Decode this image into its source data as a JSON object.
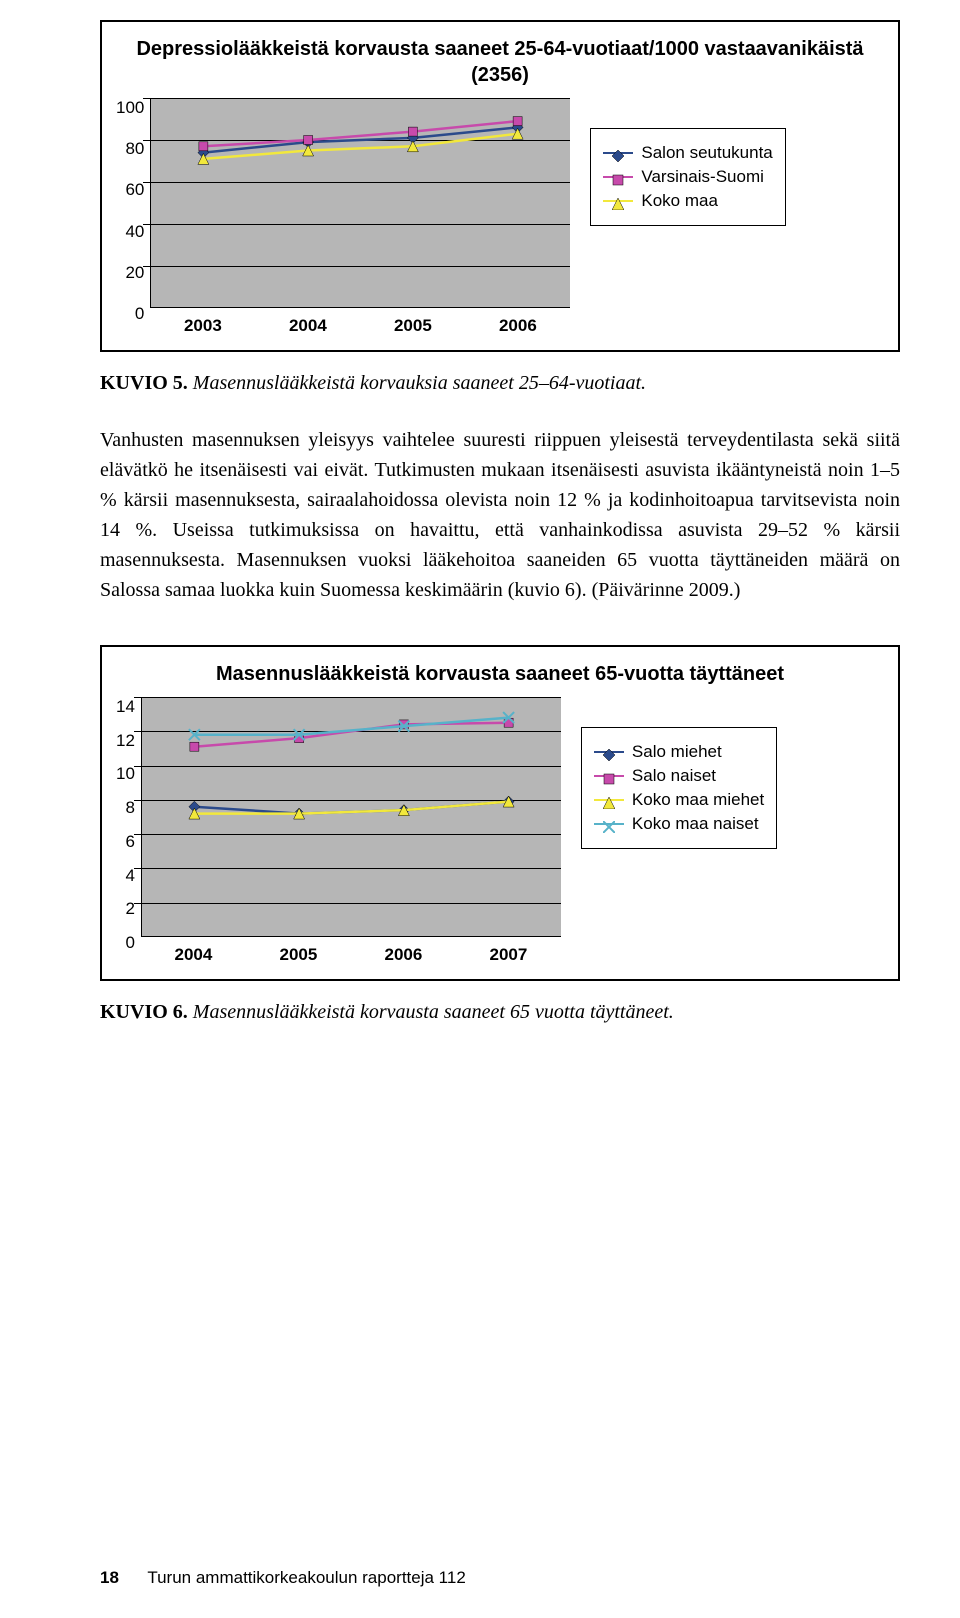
{
  "chart1": {
    "title": "Depressiolääkkeistä korvausta saaneet 25-64-vuotiaat/1000 vastaavanikäistä (2356)",
    "ylim": [
      0,
      100
    ],
    "yticks": [
      100,
      80,
      60,
      40,
      20,
      0
    ],
    "categories": [
      "2003",
      "2004",
      "2005",
      "2006"
    ],
    "plot_bg": "#b6b6b6",
    "grid_color": "#000000",
    "series": [
      {
        "name": "Salon seutukunta",
        "marker": "diamond",
        "color": "#2b4a8b",
        "values": [
          74,
          79,
          81,
          86
        ]
      },
      {
        "name": "Varsinais-Suomi",
        "marker": "square",
        "color": "#c74aab",
        "values": [
          77,
          80,
          84,
          89
        ]
      },
      {
        "name": "Koko maa",
        "marker": "triangle",
        "color": "#f2e83c",
        "values": [
          71,
          75,
          77,
          83
        ]
      }
    ]
  },
  "caption1": {
    "label": "KUVIO 5.",
    "text": "Masennuslääkkeistä korvauksia saaneet 25–64-vuotiaat."
  },
  "body": "Vanhusten masennuksen yleisyys vaihtelee suuresti riippuen yleisestä terveydentilasta sekä siitä elävätkö he itsenäisesti vai eivät. Tutkimusten mukaan itsenäisesti asuvista ikääntyneistä noin 1–5 % kärsii masennuksesta, sairaalahoidossa olevista noin 12 % ja kodinhoitoapua tarvitsevista noin 14 %. Useissa tutkimuksissa on havaittu, että vanhainkodissa asuvista 29–52 % kärsii masennuksesta. Masennuksen vuoksi lääkehoitoa saaneiden 65 vuotta täyttäneiden määrä on Salossa samaa luokka kuin Suomessa keskimäärin (kuvio 6). (Päivärinne 2009.)",
  "chart2": {
    "title": "Masennuslääkkeistä korvausta saaneet 65-vuotta täyttäneet",
    "ylim": [
      0,
      14
    ],
    "yticks": [
      14,
      12,
      10,
      8,
      6,
      4,
      2,
      0
    ],
    "categories": [
      "2004",
      "2005",
      "2006",
      "2007"
    ],
    "plot_bg": "#b6b6b6",
    "grid_color": "#000000",
    "series": [
      {
        "name": "Salo miehet",
        "marker": "diamond",
        "color": "#2b4a8b",
        "values": [
          7.6,
          7.2,
          7.4,
          7.9
        ]
      },
      {
        "name": "Salo naiset",
        "marker": "square",
        "color": "#c74aab",
        "values": [
          11.1,
          11.6,
          12.4,
          12.5
        ]
      },
      {
        "name": "Koko maa miehet",
        "marker": "triangle",
        "color": "#f2e83c",
        "values": [
          7.2,
          7.2,
          7.4,
          7.9
        ]
      },
      {
        "name": "Koko maa naiset",
        "marker": "x",
        "color": "#57b2c9",
        "values": [
          11.8,
          11.8,
          12.3,
          12.8
        ]
      }
    ]
  },
  "caption2": {
    "label": "KUVIO 6.",
    "text": "Masennuslääkkeistä korvausta saaneet 65 vuotta täyttäneet."
  },
  "footer": {
    "page": "18",
    "pub": "Turun ammattikorkeakoulun raportteja 112"
  }
}
